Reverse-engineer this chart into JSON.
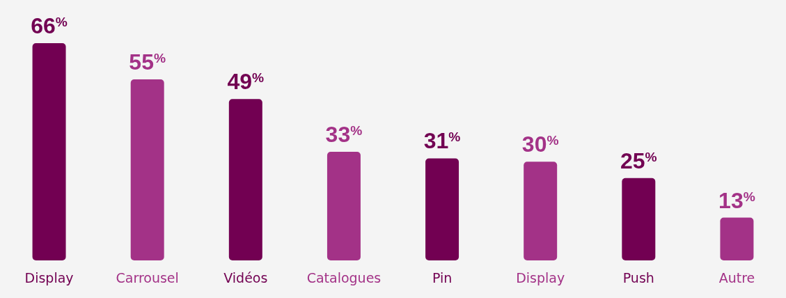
{
  "chart_data": {
    "type": "bar",
    "categories": [
      "Display",
      "Carrousel",
      "Vidéos",
      "Catalogues",
      "Pin",
      "Display",
      "Push",
      "Autre"
    ],
    "values": [
      66,
      55,
      49,
      33,
      31,
      30,
      25,
      13
    ],
    "colors": [
      "#720052",
      "#a33287",
      "#720052",
      "#a33287",
      "#720052",
      "#a33287",
      "#720052",
      "#a33287"
    ],
    "value_labels": [
      "66$^{%}$",
      "55$^{%}$",
      "49$^{%}$",
      "33$^{%}$",
      "31$^{%}$",
      "30$^{%}$",
      "25$^{%}$",
      "13$^{%}$"
    ]
  }
}
